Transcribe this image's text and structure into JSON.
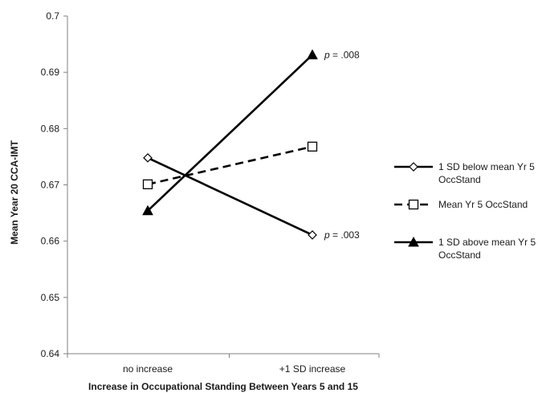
{
  "chart_data": {
    "type": "line",
    "categories": [
      "no increase",
      "+1 SD increase"
    ],
    "series": [
      {
        "name": "1 SD below mean Yr 5 OccStand",
        "values": [
          0.6748,
          0.6611
        ],
        "marker": "diamond-open",
        "dash": "solid"
      },
      {
        "name": "Mean Yr 5 OccStand",
        "values": [
          0.6701,
          0.6768
        ],
        "marker": "square-open",
        "dash": "dashed"
      },
      {
        "name": "1 SD above mean Yr 5 OccStand",
        "values": [
          0.6654,
          0.6931
        ],
        "marker": "triangle-filled",
        "dash": "solid"
      }
    ],
    "ylabel": "Mean Year 20 CCA-IMT",
    "xlabel": "Increase in Occupational Standing Between Years 5 and 15",
    "ylim": [
      0.64,
      0.7
    ],
    "yticks": [
      "0.64",
      "0.65",
      "0.66",
      "0.67",
      "0.68",
      "0.69",
      "0.7"
    ],
    "annotations": [
      {
        "text_italic": "p",
        "text_rest": " = .008",
        "series": 2,
        "point": 1
      },
      {
        "text_italic": "p",
        "text_rest": " = .003",
        "series": 0,
        "point": 1
      }
    ],
    "legend_position": "right",
    "legend_lines": [
      [
        "1 SD below mean Yr 5",
        "OccStand"
      ],
      [
        "Mean Yr 5 OccStand"
      ],
      [
        "1 SD above mean Yr 5",
        "OccStand"
      ]
    ],
    "line_color": "#000000",
    "grid": false
  }
}
